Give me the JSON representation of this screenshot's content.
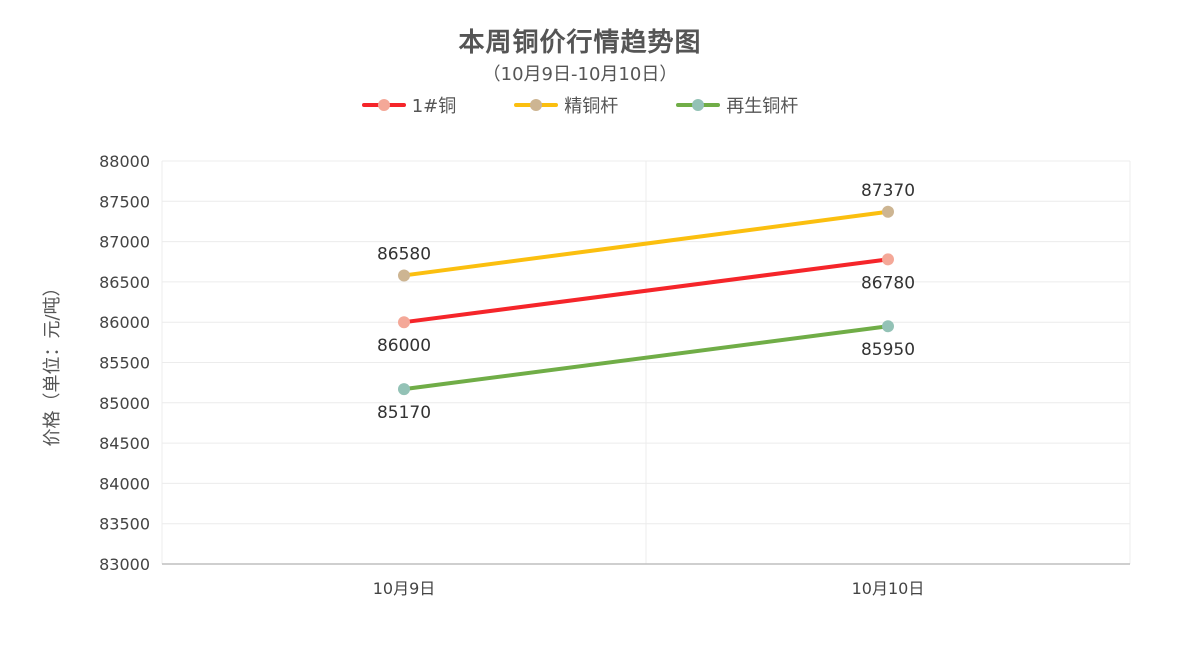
{
  "colors": {
    "text": "#555555",
    "grid": "#ececec",
    "axis": "#bfbfbf"
  },
  "chart_data": {
    "type": "line",
    "title": "本周铜价行情趋势图",
    "subtitle": "（10月9日-10月10日）",
    "xlabel": "",
    "ylabel": "价格（单位：元/吨）",
    "categories": [
      "10月9日",
      "10月10日"
    ],
    "ylim": [
      83000,
      88000
    ],
    "ytick_step": 500,
    "yticks": [
      "88000",
      "87500",
      "87000",
      "86500",
      "86000",
      "85500",
      "85000",
      "84500",
      "84000",
      "83500",
      "83000"
    ],
    "grid": true,
    "legend_position": "top-center",
    "series": [
      {
        "name": "1#铜",
        "values": [
          86000,
          86780
        ],
        "line_color": "#f5252a",
        "marker_color": "#f4a898",
        "label_positions": [
          "below",
          "below"
        ]
      },
      {
        "name": "精铜杆",
        "values": [
          86580,
          87370
        ],
        "line_color": "#fbbf0f",
        "marker_color": "#cdb592",
        "label_positions": [
          "above",
          "above"
        ]
      },
      {
        "name": "再生铜杆",
        "values": [
          85170,
          85950
        ],
        "line_color": "#70ad47",
        "marker_color": "#93c2b6",
        "label_positions": [
          "below",
          "below"
        ]
      }
    ]
  }
}
